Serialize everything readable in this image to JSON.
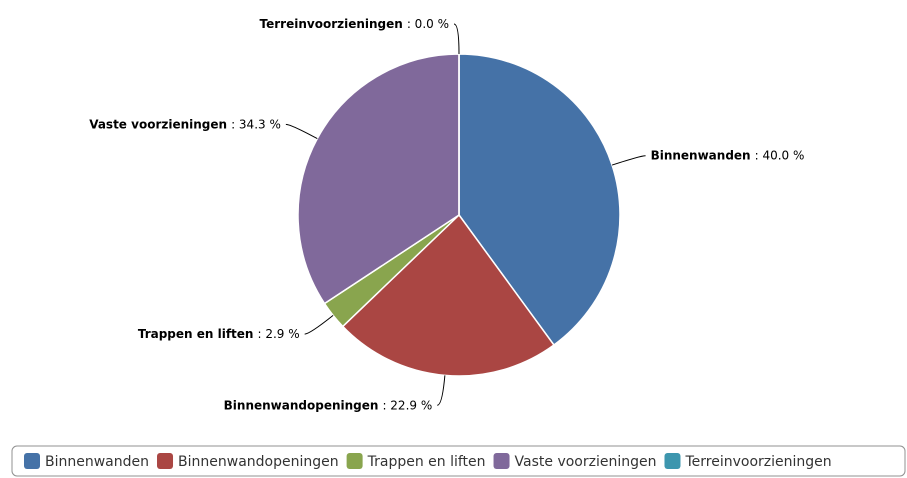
{
  "chart_data": {
    "type": "pie",
    "categories": [
      "Binnenwanden",
      "Binnenwandopeningen",
      "Trappen en liften",
      "Vaste voorzieningen",
      "Terreinvoorzieningen"
    ],
    "values": [
      40.0,
      22.9,
      2.9,
      34.3,
      0.0
    ],
    "value_labels": [
      ": 40.0 %",
      ": 22.9 %",
      ": 2.9 %",
      ": 34.3 %",
      ": 0.0 %"
    ],
    "colors": [
      "#4572a7",
      "#aa4643",
      "#89a54e",
      "#80699b",
      "#3d96ae"
    ],
    "legend": "bottom"
  }
}
